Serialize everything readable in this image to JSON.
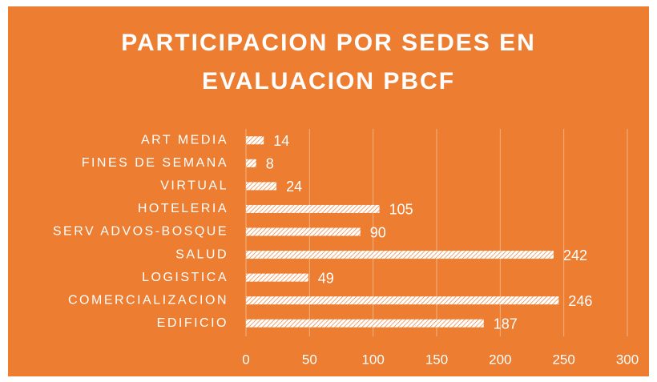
{
  "chart_data": {
    "type": "bar",
    "orientation": "horizontal",
    "title": [
      "PARTICIPACION POR SEDES EN",
      "EVALUACION PBCF"
    ],
    "categories": [
      "ART MEDIA",
      "FINES DE SEMANA",
      "VIRTUAL",
      "HOTELERIA",
      "SERV ADVOS-BOSQUE",
      "SALUD",
      "LOGISTICA",
      "COMERCIALIZACION",
      "EDIFICIO"
    ],
    "values": [
      14,
      8,
      24,
      105,
      90,
      242,
      49,
      246,
      187
    ],
    "color": "#ffffff",
    "background": "#ed7d31",
    "xlim": [
      0,
      300
    ],
    "xticks": [
      0,
      50,
      100,
      150,
      200,
      250,
      300
    ],
    "grid": true
  }
}
